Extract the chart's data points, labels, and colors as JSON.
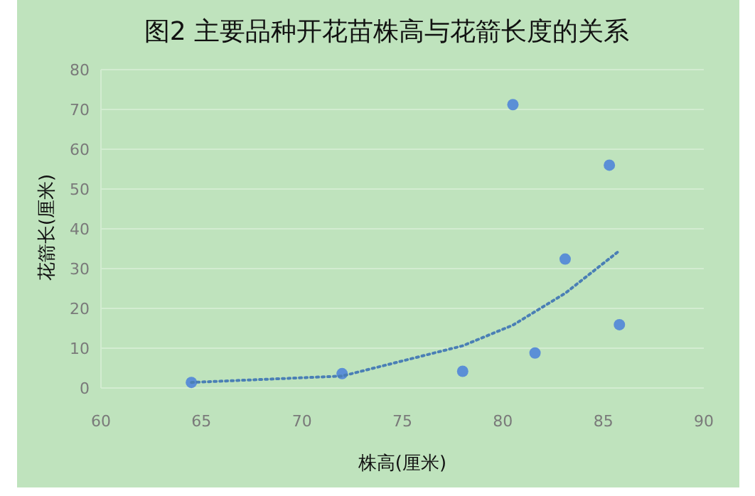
{
  "chart_data": {
    "type": "scatter",
    "title": "图2 主要品种开花苗株高与花箭长度的关系",
    "xlabel": "株高(厘米)",
    "ylabel": "花箭长(厘米)",
    "xlim": [
      60,
      90
    ],
    "xticks": [
      60,
      65,
      70,
      75,
      80,
      85,
      90
    ],
    "ylim": [
      0,
      80
    ],
    "yticks": [
      0,
      10,
      20,
      30,
      40,
      50,
      60,
      70,
      80
    ],
    "grid": "y",
    "series": [
      {
        "color": "#5b8fd6",
        "marker": "circle",
        "x": [
          64.5,
          72.0,
          78.0,
          80.5,
          81.6,
          83.1,
          85.3,
          85.8
        ],
        "values": [
          1.4,
          3.6,
          4.2,
          71.2,
          8.8,
          32.4,
          56,
          15.9
        ]
      },
      {
        "type": "line",
        "color": "#4a7fb5",
        "marker": "none",
        "line_style": "dotted",
        "x": [
          64.5,
          72,
          78,
          80.5,
          83.1,
          85.8
        ],
        "values": [
          1.4,
          3.0,
          10.6,
          15.8,
          23.8,
          34.5
        ]
      }
    ]
  }
}
